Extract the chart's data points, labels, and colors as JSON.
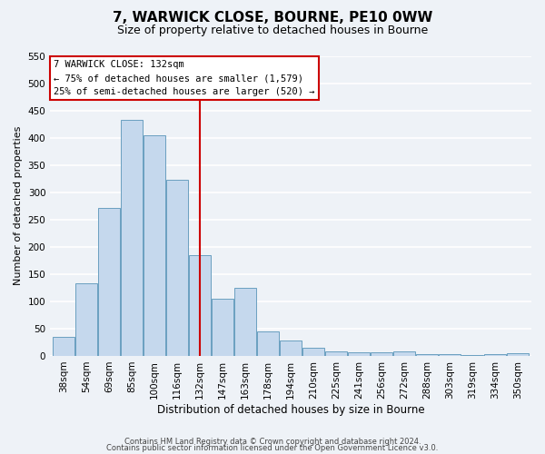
{
  "title": "7, WARWICK CLOSE, BOURNE, PE10 0WW",
  "subtitle": "Size of property relative to detached houses in Bourne",
  "xlabel": "Distribution of detached houses by size in Bourne",
  "ylabel": "Number of detached properties",
  "categories": [
    "38sqm",
    "54sqm",
    "69sqm",
    "85sqm",
    "100sqm",
    "116sqm",
    "132sqm",
    "147sqm",
    "163sqm",
    "178sqm",
    "194sqm",
    "210sqm",
    "225sqm",
    "241sqm",
    "256sqm",
    "272sqm",
    "288sqm",
    "303sqm",
    "319sqm",
    "334sqm",
    "350sqm"
  ],
  "values": [
    35,
    133,
    272,
    432,
    405,
    323,
    184,
    105,
    125,
    45,
    28,
    15,
    8,
    6,
    6,
    8,
    3,
    3,
    2,
    3,
    5
  ],
  "bar_color": "#c5d8ed",
  "bar_edge_color": "#6a9fc0",
  "highlight_index": 6,
  "highlight_line_color": "#cc0000",
  "annotation_title": "7 WARWICK CLOSE: 132sqm",
  "annotation_line1": "← 75% of detached houses are smaller (1,579)",
  "annotation_line2": "25% of semi-detached houses are larger (520) →",
  "annotation_box_facecolor": "#ffffff",
  "annotation_box_edgecolor": "#cc0000",
  "ylim": [
    0,
    550
  ],
  "yticks": [
    0,
    50,
    100,
    150,
    200,
    250,
    300,
    350,
    400,
    450,
    500,
    550
  ],
  "footer_line1": "Contains HM Land Registry data © Crown copyright and database right 2024.",
  "footer_line2": "Contains public sector information licensed under the Open Government Licence v3.0.",
  "background_color": "#eef2f7",
  "grid_color": "#ffffff",
  "title_fontsize": 11,
  "subtitle_fontsize": 9,
  "ylabel_fontsize": 8,
  "xlabel_fontsize": 8.5,
  "tick_fontsize": 7.5,
  "annotation_fontsize": 7.5,
  "footer_fontsize": 6
}
